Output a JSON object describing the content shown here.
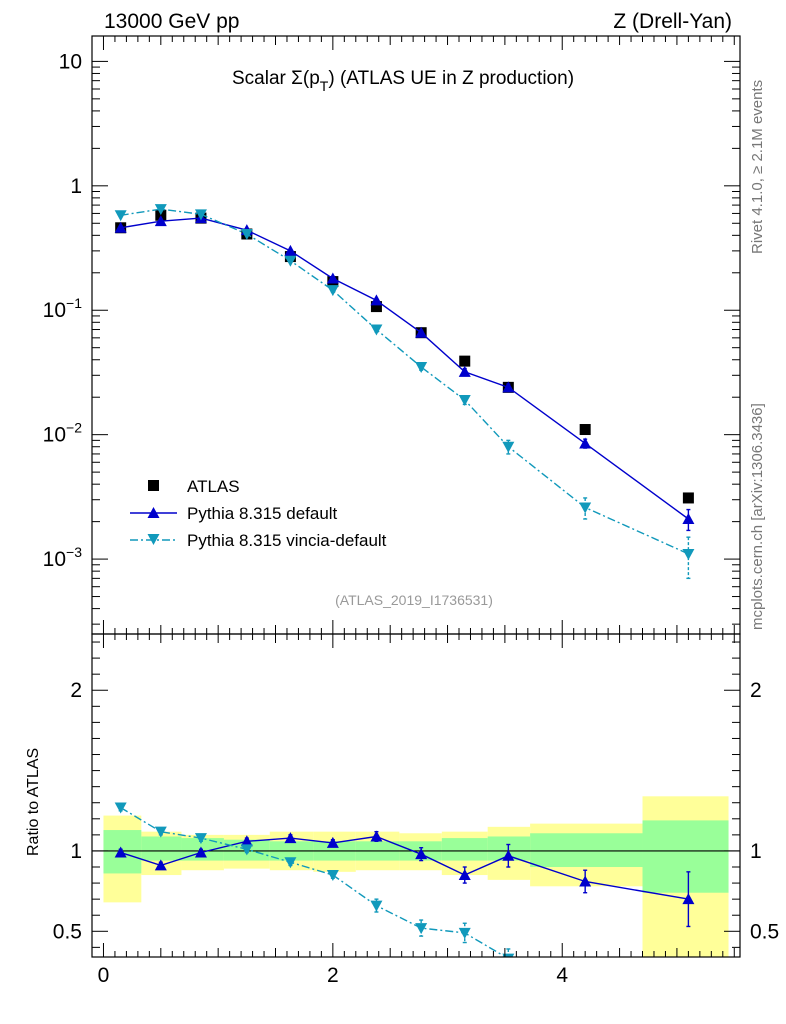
{
  "header": {
    "energy": "13000 GeV pp",
    "process": "Z (Drell-Yan)"
  },
  "side": {
    "rivet": "Rivet 4.1.0, ≥ 2.1M events",
    "source": "mcplots.cern.ch [arXiv:1306.3436]"
  },
  "chart_data": [
    {
      "type": "scatter",
      "title": "Scalar Σ(p_T) (ATLAS UE in Z production)",
      "title_parts": {
        "prefix": "Scalar Σ(p",
        "sub": "T",
        "suffix": ") (ATLAS UE in Z production)"
      },
      "reference": "(ATLAS_2019_I1736531)",
      "yscale": "log",
      "ylim": [
        0.00025,
        16
      ],
      "xlim": [
        -0.1,
        5.55
      ],
      "ytick_labels": [
        {
          "base": "10",
          "exp": "",
          "value": 10
        },
        {
          "base": "1",
          "exp": "",
          "value": 1
        },
        {
          "base": "10",
          "exp": "−1",
          "value": 0.1
        },
        {
          "base": "10",
          "exp": "−2",
          "value": 0.01
        },
        {
          "base": "10",
          "exp": "−3",
          "value": 0.001
        }
      ],
      "legend": {
        "position": "bottom-left",
        "entries": [
          "ATLAS",
          "Pythia 8.315 default",
          "Pythia 8.315 vincia-default"
        ]
      },
      "series": [
        {
          "name": "ATLAS",
          "color": "#000000",
          "marker": "square",
          "x": [
            0.15,
            0.5,
            0.85,
            1.25,
            1.63,
            2.0,
            2.38,
            2.77,
            3.15,
            3.53,
            4.2,
            5.1
          ],
          "values": [
            0.46,
            0.58,
            0.55,
            0.41,
            0.27,
            0.17,
            0.107,
            0.066,
            0.039,
            0.024,
            0.011,
            0.0031
          ],
          "errors": [
            0,
            0,
            0,
            0,
            0,
            0,
            0,
            0,
            0,
            0,
            0,
            0
          ]
        },
        {
          "name": "Pythia 8.315 default",
          "color": "#0000cc",
          "marker": "triangle-up",
          "line": "solid",
          "x": [
            0.15,
            0.5,
            0.85,
            1.25,
            1.63,
            2.0,
            2.38,
            2.77,
            3.15,
            3.53,
            4.2,
            5.1
          ],
          "values": [
            0.46,
            0.52,
            0.55,
            0.44,
            0.3,
            0.18,
            0.12,
            0.066,
            0.032,
            0.024,
            0.0085,
            0.0021
          ],
          "errors": [
            0.01,
            0.01,
            0.01,
            0.01,
            0.008,
            0.005,
            0.004,
            0.003,
            0.002,
            0.0015,
            0.0007,
            0.0004
          ]
        },
        {
          "name": "Pythia 8.315 vincia-default",
          "color": "#1199bb",
          "marker": "triangle-down",
          "line": "dashdot",
          "x": [
            0.15,
            0.5,
            0.85,
            1.25,
            1.63,
            2.0,
            2.38,
            2.77,
            3.15,
            3.53,
            4.2,
            5.1
          ],
          "values": [
            0.58,
            0.65,
            0.59,
            0.41,
            0.25,
            0.145,
            0.07,
            0.035,
            0.019,
            0.008,
            0.0026,
            0.0011
          ],
          "errors": [
            0.01,
            0.01,
            0.01,
            0.01,
            0.007,
            0.005,
            0.003,
            0.002,
            0.0015,
            0.001,
            0.0005,
            0.0004
          ]
        }
      ]
    },
    {
      "type": "scatter",
      "ylabel": "Ratio to ATLAS",
      "ylim": [
        0.34,
        2.35
      ],
      "xlim": [
        -0.1,
        5.55
      ],
      "x_ticks": [
        0,
        2,
        4
      ],
      "y_ticks": [
        0.5,
        1,
        2
      ],
      "bands": {
        "edges": [
          0,
          0.33,
          0.68,
          1.05,
          1.45,
          1.83,
          2.2,
          2.58,
          2.95,
          3.35,
          3.72,
          4.7,
          5.45
        ],
        "stat_low": [
          0.86,
          0.94,
          0.94,
          0.94,
          0.94,
          0.94,
          0.94,
          0.94,
          0.94,
          0.94,
          0.9,
          0.74
        ],
        "stat_high": [
          1.13,
          1.09,
          1.08,
          1.07,
          1.06,
          1.06,
          1.06,
          1.06,
          1.08,
          1.09,
          1.11,
          1.19
        ],
        "tot_low": [
          0.68,
          0.85,
          0.88,
          0.89,
          0.88,
          0.87,
          0.88,
          0.88,
          0.85,
          0.82,
          0.78,
          0.34
        ],
        "tot_high": [
          1.22,
          1.12,
          1.1,
          1.1,
          1.12,
          1.12,
          1.12,
          1.11,
          1.12,
          1.15,
          1.17,
          1.34
        ]
      },
      "series": [
        {
          "name": "Pythia 8.315 default",
          "color": "#0000cc",
          "marker": "triangle-up",
          "line": "solid",
          "x": [
            0.15,
            0.5,
            0.85,
            1.25,
            1.63,
            2.0,
            2.38,
            2.77,
            3.15,
            3.53,
            4.2,
            5.1
          ],
          "values": [
            0.99,
            0.91,
            0.99,
            1.06,
            1.08,
            1.05,
            1.09,
            0.98,
            0.85,
            0.97,
            0.81,
            0.7
          ],
          "errors": [
            0.02,
            0.02,
            0.02,
            0.02,
            0.02,
            0.02,
            0.03,
            0.04,
            0.05,
            0.07,
            0.07,
            0.17
          ]
        },
        {
          "name": "Pythia 8.315 vincia-default",
          "color": "#1199bb",
          "marker": "triangle-down",
          "line": "dashdot",
          "x": [
            0.15,
            0.5,
            0.85,
            1.25,
            1.63,
            2.0,
            2.38,
            2.77,
            3.15,
            3.53
          ],
          "values": [
            1.27,
            1.12,
            1.08,
            1.01,
            0.93,
            0.85,
            0.66,
            0.52,
            0.49,
            0.33
          ],
          "errors": [
            0.02,
            0.02,
            0.02,
            0.02,
            0.02,
            0.02,
            0.04,
            0.05,
            0.06,
            0.06
          ]
        }
      ]
    }
  ]
}
